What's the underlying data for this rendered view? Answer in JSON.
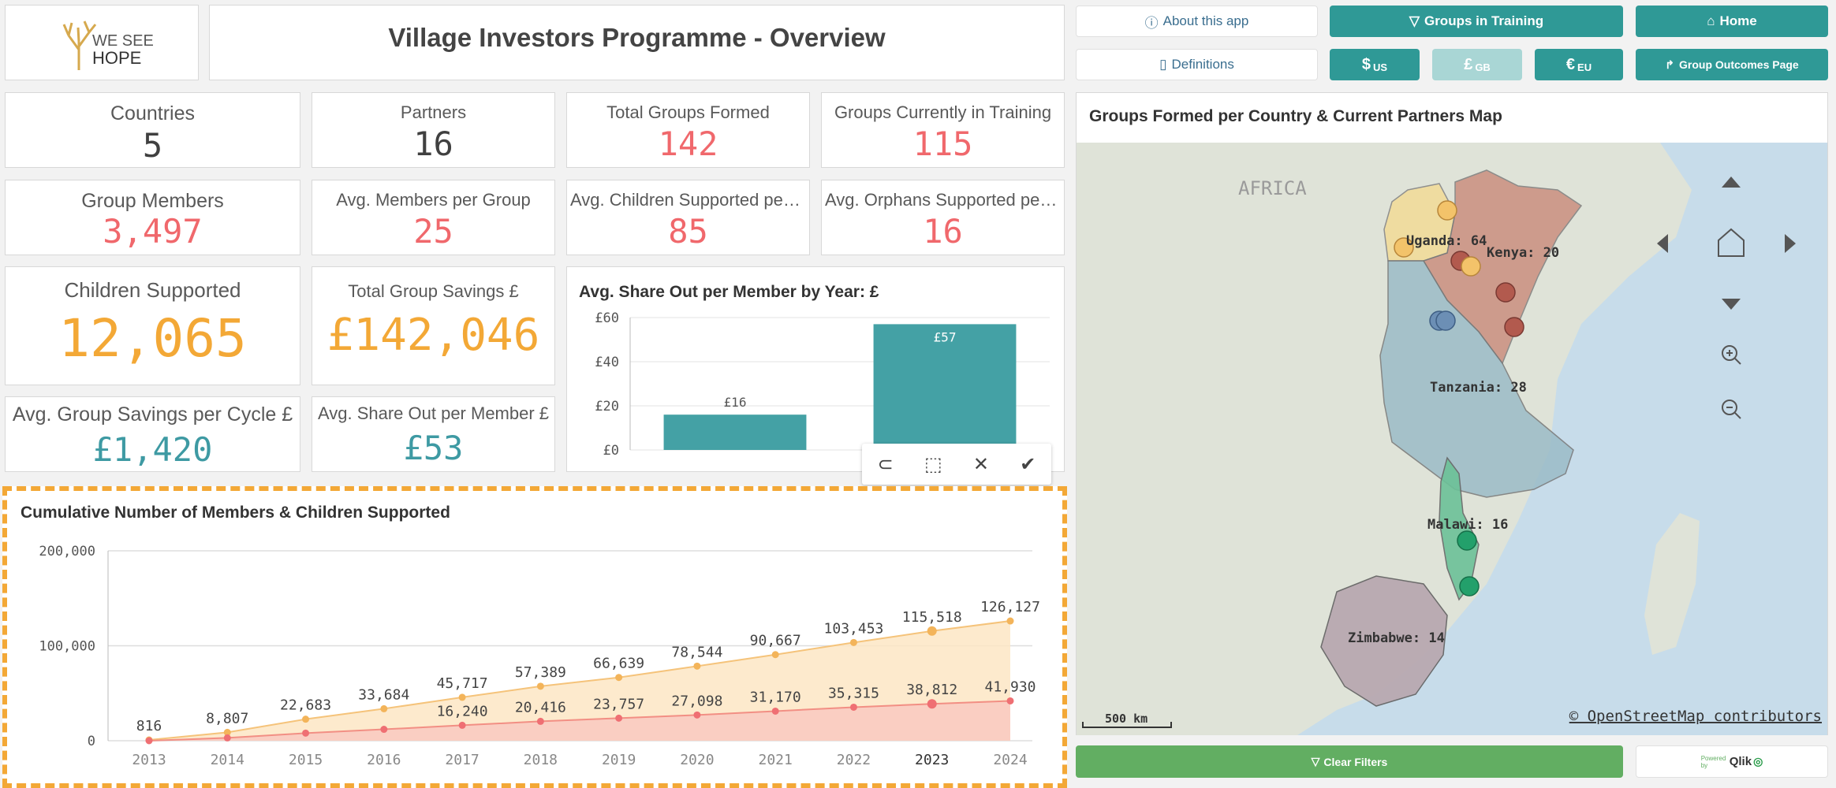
{
  "logo": {
    "line1": "WE SEE",
    "line2": "HOPE"
  },
  "title": "Village Investors Programme - Overview",
  "buttons": {
    "about": "About this app",
    "definitions": "Definitions",
    "groups_training": "Groups in Training",
    "home": "Home",
    "usd": "$",
    "usd_sub": "US",
    "gbp": "£",
    "gbp_sub": "GB",
    "eur": "€",
    "eur_sub": "EU",
    "group_outcomes": "Group Outcomes Page",
    "clear_filters": "Clear Filters"
  },
  "kpis": {
    "countries": {
      "label": "Countries",
      "value": "5"
    },
    "partners": {
      "label": "Partners",
      "value": "16"
    },
    "groups_formed": {
      "label": "Total Groups Formed",
      "value": "142"
    },
    "groups_training": {
      "label": "Groups Currently in Training",
      "value": "115"
    },
    "group_members": {
      "label": "Group Members",
      "value": "3,497"
    },
    "avg_members": {
      "label": "Avg. Members per Group",
      "value": "25"
    },
    "avg_children": {
      "label": "Avg. Children Supported per G...",
      "value": "85"
    },
    "avg_orphans": {
      "label": "Avg. Orphans Supported per ...",
      "value": "16"
    },
    "children_supported": {
      "label": "Children Supported",
      "value": "12,065"
    },
    "total_savings": {
      "label": "Total Group Savings £",
      "value": "£142,046"
    },
    "avg_savings_cycle": {
      "label": "Avg. Group Savings per Cycle £",
      "value": "£1,420"
    },
    "avg_share_out": {
      "label": "Avg. Share Out per Member £",
      "value": "£53"
    }
  },
  "colors": {
    "teal": "#2f9996",
    "red": "#f0686c",
    "orange": "#f3a836",
    "bar": "#44a1a5",
    "green": "#62ae62"
  },
  "share_chart": {
    "title": "Avg. Share Out per Member by Year: £",
    "chart_data": {
      "type": "bar",
      "values": [
        16,
        57
      ],
      "labels": [
        "£16",
        "£57"
      ],
      "ylim": [
        0,
        60
      ],
      "yticks": [
        "£0",
        "£20",
        "£40",
        "£60"
      ]
    }
  },
  "cumulative_chart": {
    "title": "Cumulative Number of Members & Children Supported",
    "chart_data": {
      "type": "area",
      "x": [
        "2013",
        "2014",
        "2015",
        "2016",
        "2017",
        "2018",
        "2019",
        "2020",
        "2021",
        "2022",
        "2023",
        "2024"
      ],
      "ylim": [
        0,
        200000
      ],
      "yticks": [
        "0",
        "100,000",
        "200,000"
      ],
      "series": [
        {
          "values": [
            816,
            8807,
            22683,
            33684,
            45717,
            57389,
            66639,
            78544,
            90667,
            103453,
            115518,
            126127
          ],
          "labels": [
            "816",
            "8,807",
            "22,683",
            "33,684",
            "45,717",
            "57,389",
            "66,639",
            "78,544",
            "90,667",
            "103,453",
            "115,518",
            "126,127"
          ]
        },
        {
          "values": [
            0,
            3000,
            8000,
            12000,
            16240,
            20416,
            23757,
            27098,
            31170,
            35315,
            38812,
            41930
          ],
          "labels": [
            "",
            "",
            "",
            "",
            "16,240",
            "20,416",
            "23,757",
            "27,098",
            "31,170",
            "35,315",
            "38,812",
            "41,930"
          ]
        }
      ]
    }
  },
  "map": {
    "title": "Groups Formed per Country & Current Partners Map",
    "continent": "AFRICA",
    "countries": [
      {
        "label": "Uganda: 64"
      },
      {
        "label": "Kenya: 20"
      },
      {
        "label": "Tanzania: 28"
      },
      {
        "label": "Malawi: 16"
      },
      {
        "label": "Zimbabwe: 14"
      }
    ],
    "scale": "500 km",
    "attribution": "© OpenStreetMap contributors"
  },
  "qlik": {
    "powered": "Powered by",
    "brand": "Qlik"
  }
}
